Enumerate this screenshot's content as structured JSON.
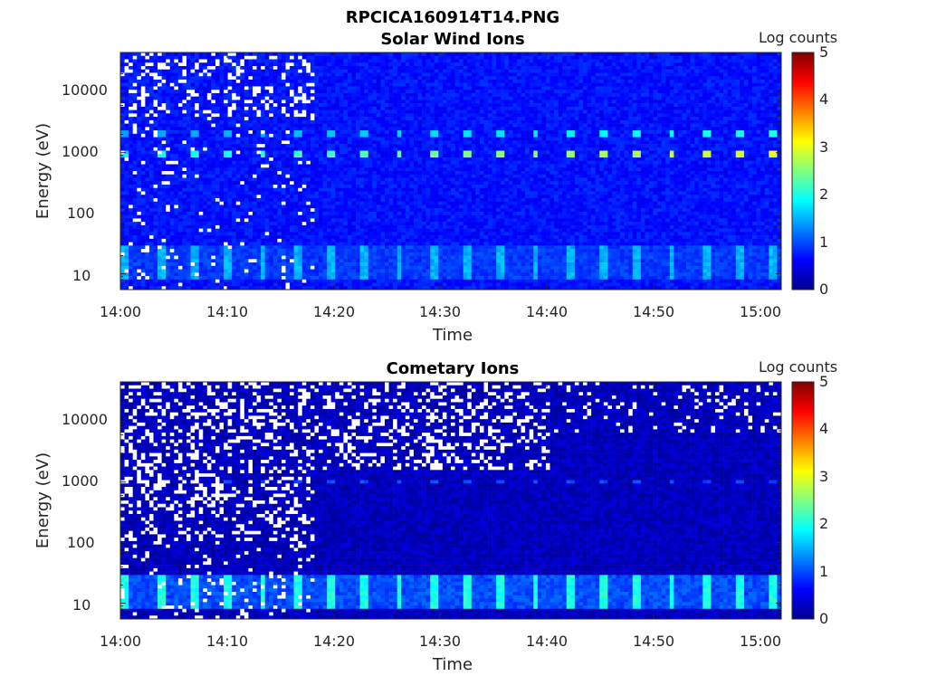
{
  "figure_title": "RPCICA160914T14.PNG",
  "chart_data": [
    {
      "type": "heatmap",
      "title": "Solar Wind Ions",
      "xlabel": "Time",
      "ylabel": "Energy (eV)",
      "x_ticks": [
        "14:00",
        "14:10",
        "14:20",
        "14:30",
        "14:40",
        "14:50",
        "15:00"
      ],
      "y_ticks": [
        "10",
        "100",
        "1000",
        "10000"
      ],
      "y_scale": "log",
      "ylim": [
        5.5,
        45000
      ],
      "xlim": [
        "14:00",
        "15:02"
      ],
      "colorbar": {
        "label": "Log counts",
        "range": [
          0,
          5
        ],
        "ticks": [
          "0",
          "1",
          "2",
          "3",
          "4",
          "5"
        ]
      },
      "features": {
        "background_log_counts": 0.7,
        "peak_energy_eV": 1000,
        "peak_log_counts_start": 1.8,
        "peak_log_counts_end": 3.0,
        "low_energy_band_eV": [
          10,
          30
        ],
        "low_energy_log_counts": 1.3,
        "sweep_period_min": 3.2
      }
    },
    {
      "type": "heatmap",
      "title": "Cometary Ions",
      "xlabel": "Time",
      "ylabel": "Energy (eV)",
      "x_ticks": [
        "14:00",
        "14:10",
        "14:20",
        "14:30",
        "14:40",
        "14:50",
        "15:00"
      ],
      "y_ticks": [
        "10",
        "100",
        "1000",
        "10000"
      ],
      "y_scale": "log",
      "ylim": [
        5.5,
        45000
      ],
      "xlim": [
        "14:00",
        "15:02"
      ],
      "colorbar": {
        "label": "Log counts",
        "range": [
          0,
          5
        ],
        "ticks": [
          "0",
          "1",
          "2",
          "3",
          "4",
          "5"
        ]
      },
      "features": {
        "background_log_counts": 0.3,
        "peak_energy_eV": 1000,
        "peak_log_counts": 1.0,
        "low_energy_band_eV": [
          10,
          30
        ],
        "low_energy_log_counts": 2.0,
        "sweep_period_min": 3.2
      }
    }
  ]
}
